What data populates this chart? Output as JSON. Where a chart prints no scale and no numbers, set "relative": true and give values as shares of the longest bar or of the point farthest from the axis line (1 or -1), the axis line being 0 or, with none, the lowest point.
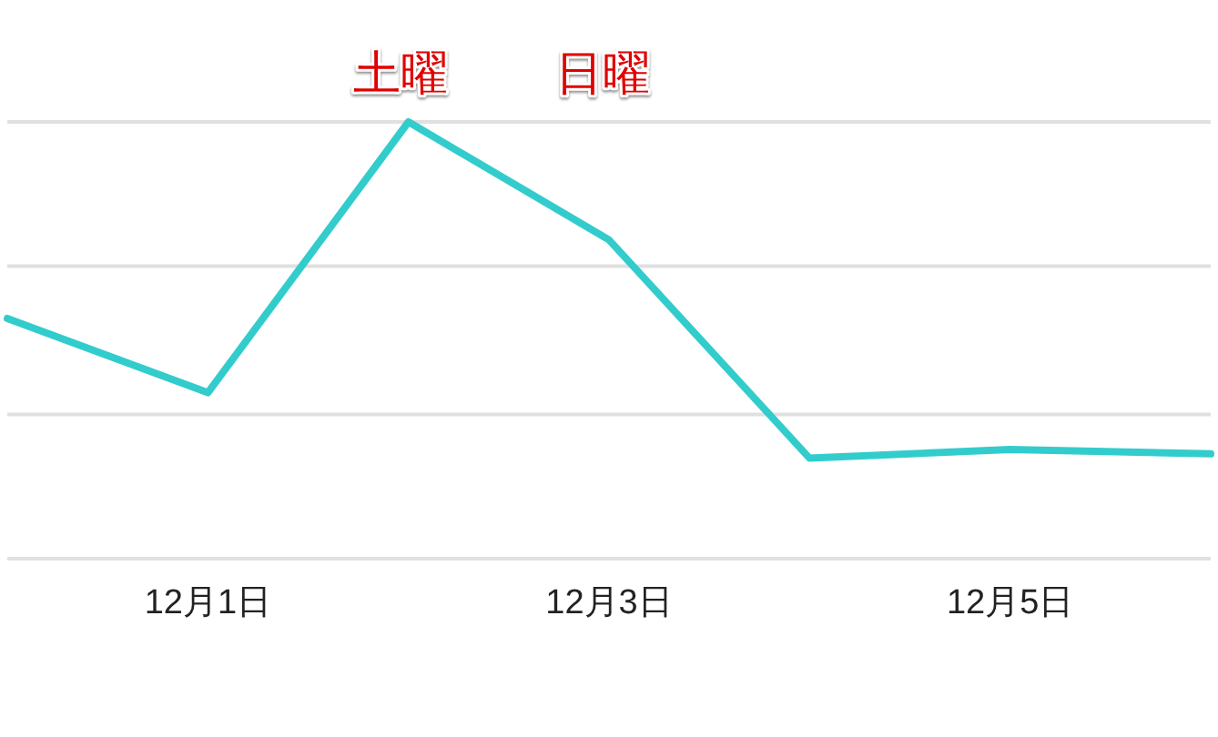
{
  "chart_data": {
    "type": "line",
    "relative": true,
    "x": [
      "--11-30",
      "--12-01",
      "--12-02",
      "--12-03",
      "--12-04",
      "--12-05",
      "--12-06"
    ],
    "values": [
      0.55,
      0.38,
      1,
      0.73,
      0.23,
      0.25,
      0.24
    ],
    "color": "#33cccc",
    "xlim": [
      "--11-30",
      "--12-06"
    ],
    "xticks": [
      {
        "value": "--12-01",
        "label": "12月1日"
      },
      {
        "value": "--12-03",
        "label": "12月3日"
      },
      {
        "value": "--12-05",
        "label": "12月5日"
      }
    ],
    "ref_lines": [
      {
        "axis": "y",
        "value": 0.33,
        "color": "#e0e0e0",
        "line_style": "solid"
      },
      {
        "axis": "y",
        "value": 0.67,
        "color": "#e0e0e0",
        "line_style": "solid"
      },
      {
        "axis": "y",
        "value": 1,
        "color": "#e0e0e0",
        "line_style": "solid"
      }
    ],
    "line_style": "solid",
    "annotations": [
      "土曜",
      "日曜"
    ]
  }
}
